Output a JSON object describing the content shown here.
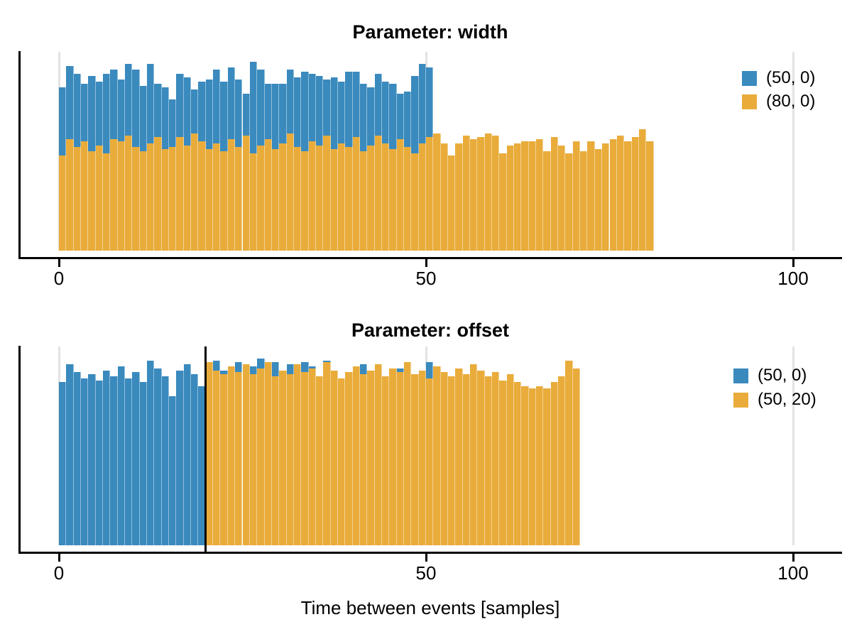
{
  "figure": {
    "background": "#ffffff",
    "xlabel": "Time between events [samples]"
  },
  "chart_data": [
    {
      "type": "histogram",
      "title": "Parameter: width",
      "bin_width": 1,
      "x_ticks": [
        0,
        50,
        100
      ],
      "x_tick_labels": [
        "0",
        "50",
        "100"
      ],
      "xlim": [
        -5,
        108
      ],
      "grid": "vertical gridlines at x ticks",
      "legend_position": "upper-right",
      "legend": [
        {
          "label": "(50, 0)",
          "color": "#3a8abe"
        },
        {
          "label": "(80, 0)",
          "color": "#e9ac3b"
        }
      ],
      "series": [
        {
          "name": "(50, 0)",
          "start_bin": 0,
          "heights_rel": [
            0.82,
            0.93,
            0.89,
            0.84,
            0.88,
            0.85,
            0.89,
            0.91,
            0.86,
            0.94,
            0.91,
            0.83,
            0.94,
            0.84,
            0.82,
            0.76,
            0.89,
            0.87,
            0.81,
            0.85,
            0.86,
            0.91,
            0.85,
            0.92,
            0.86,
            0.79,
            0.95,
            0.91,
            0.84,
            0.84,
            0.84,
            0.91,
            0.87,
            0.9,
            0.89,
            0.88,
            0.86,
            0.87,
            0.85,
            0.9,
            0.9,
            0.84,
            0.82,
            0.89,
            0.85,
            0.84,
            0.79,
            0.8,
            0.88,
            0.94,
            0.92
          ]
        },
        {
          "name": "(80, 0)",
          "start_bin": 0,
          "heights_rel": [
            0.48,
            0.56,
            0.52,
            0.55,
            0.5,
            0.53,
            0.49,
            0.56,
            0.55,
            0.58,
            0.52,
            0.5,
            0.54,
            0.57,
            0.51,
            0.52,
            0.57,
            0.53,
            0.59,
            0.55,
            0.51,
            0.54,
            0.5,
            0.56,
            0.52,
            0.58,
            0.49,
            0.53,
            0.56,
            0.51,
            0.54,
            0.59,
            0.52,
            0.5,
            0.55,
            0.53,
            0.58,
            0.51,
            0.54,
            0.52,
            0.57,
            0.5,
            0.53,
            0.58,
            0.54,
            0.51,
            0.56,
            0.52,
            0.49,
            0.54,
            0.57,
            0.59,
            0.54,
            0.48,
            0.54,
            0.58,
            0.56,
            0.57,
            0.59,
            0.58,
            0.49,
            0.53,
            0.54,
            0.55,
            0.55,
            0.56,
            0.5,
            0.57,
            0.53,
            0.49,
            0.55,
            0.5,
            0.55,
            0.51,
            0.54,
            0.56,
            0.58,
            0.55,
            0.57,
            0.61,
            0.55
          ]
        }
      ]
    },
    {
      "type": "histogram",
      "title": "Parameter: offset",
      "bin_width": 1,
      "x_ticks": [
        0,
        50,
        100
      ],
      "x_tick_labels": [
        "0",
        "50",
        "100"
      ],
      "xlim": [
        -5,
        108
      ],
      "grid": "vertical gridlines at x ticks",
      "legend_position": "upper-right",
      "vline_x": 20,
      "vline_color": "#000000",
      "legend": [
        {
          "label": "(50, 0)",
          "color": "#3a8abe"
        },
        {
          "label": "(50, 20)",
          "color": "#e9ac3b"
        }
      ],
      "series": [
        {
          "name": "(50, 0)",
          "start_bin": 0,
          "heights_rel": [
            0.82,
            0.91,
            0.87,
            0.84,
            0.86,
            0.83,
            0.88,
            0.85,
            0.9,
            0.84,
            0.87,
            0.82,
            0.93,
            0.89,
            0.85,
            0.75,
            0.88,
            0.91,
            0.86,
            0.8,
            0.85,
            0.93,
            0.88,
            0.87,
            0.92,
            0.83,
            0.9,
            0.94,
            0.85,
            0.92,
            0.84,
            0.91,
            0.83,
            0.92,
            0.9,
            0.84,
            0.93,
            0.85,
            0.82,
            0.87,
            0.84,
            0.91,
            0.88,
            0.83,
            0.85,
            0.81,
            0.89,
            0.84,
            0.86,
            0.83,
            0.92,
            0.87
          ]
        },
        {
          "name": "(50, 20)",
          "start_bin": 20,
          "heights_rel": [
            0.92,
            0.88,
            0.86,
            0.9,
            0.87,
            0.91,
            0.86,
            0.89,
            0.92,
            0.85,
            0.88,
            0.86,
            0.91,
            0.87,
            0.89,
            0.85,
            0.92,
            0.88,
            0.84,
            0.87,
            0.9,
            0.86,
            0.88,
            0.91,
            0.85,
            0.89,
            0.87,
            0.92,
            0.86,
            0.88,
            0.84,
            0.9,
            0.87,
            0.85,
            0.89,
            0.86,
            0.91,
            0.88,
            0.85,
            0.87,
            0.83,
            0.86,
            0.82,
            0.8,
            0.79,
            0.8,
            0.79,
            0.82,
            0.85,
            0.93,
            0.89
          ]
        }
      ]
    }
  ]
}
